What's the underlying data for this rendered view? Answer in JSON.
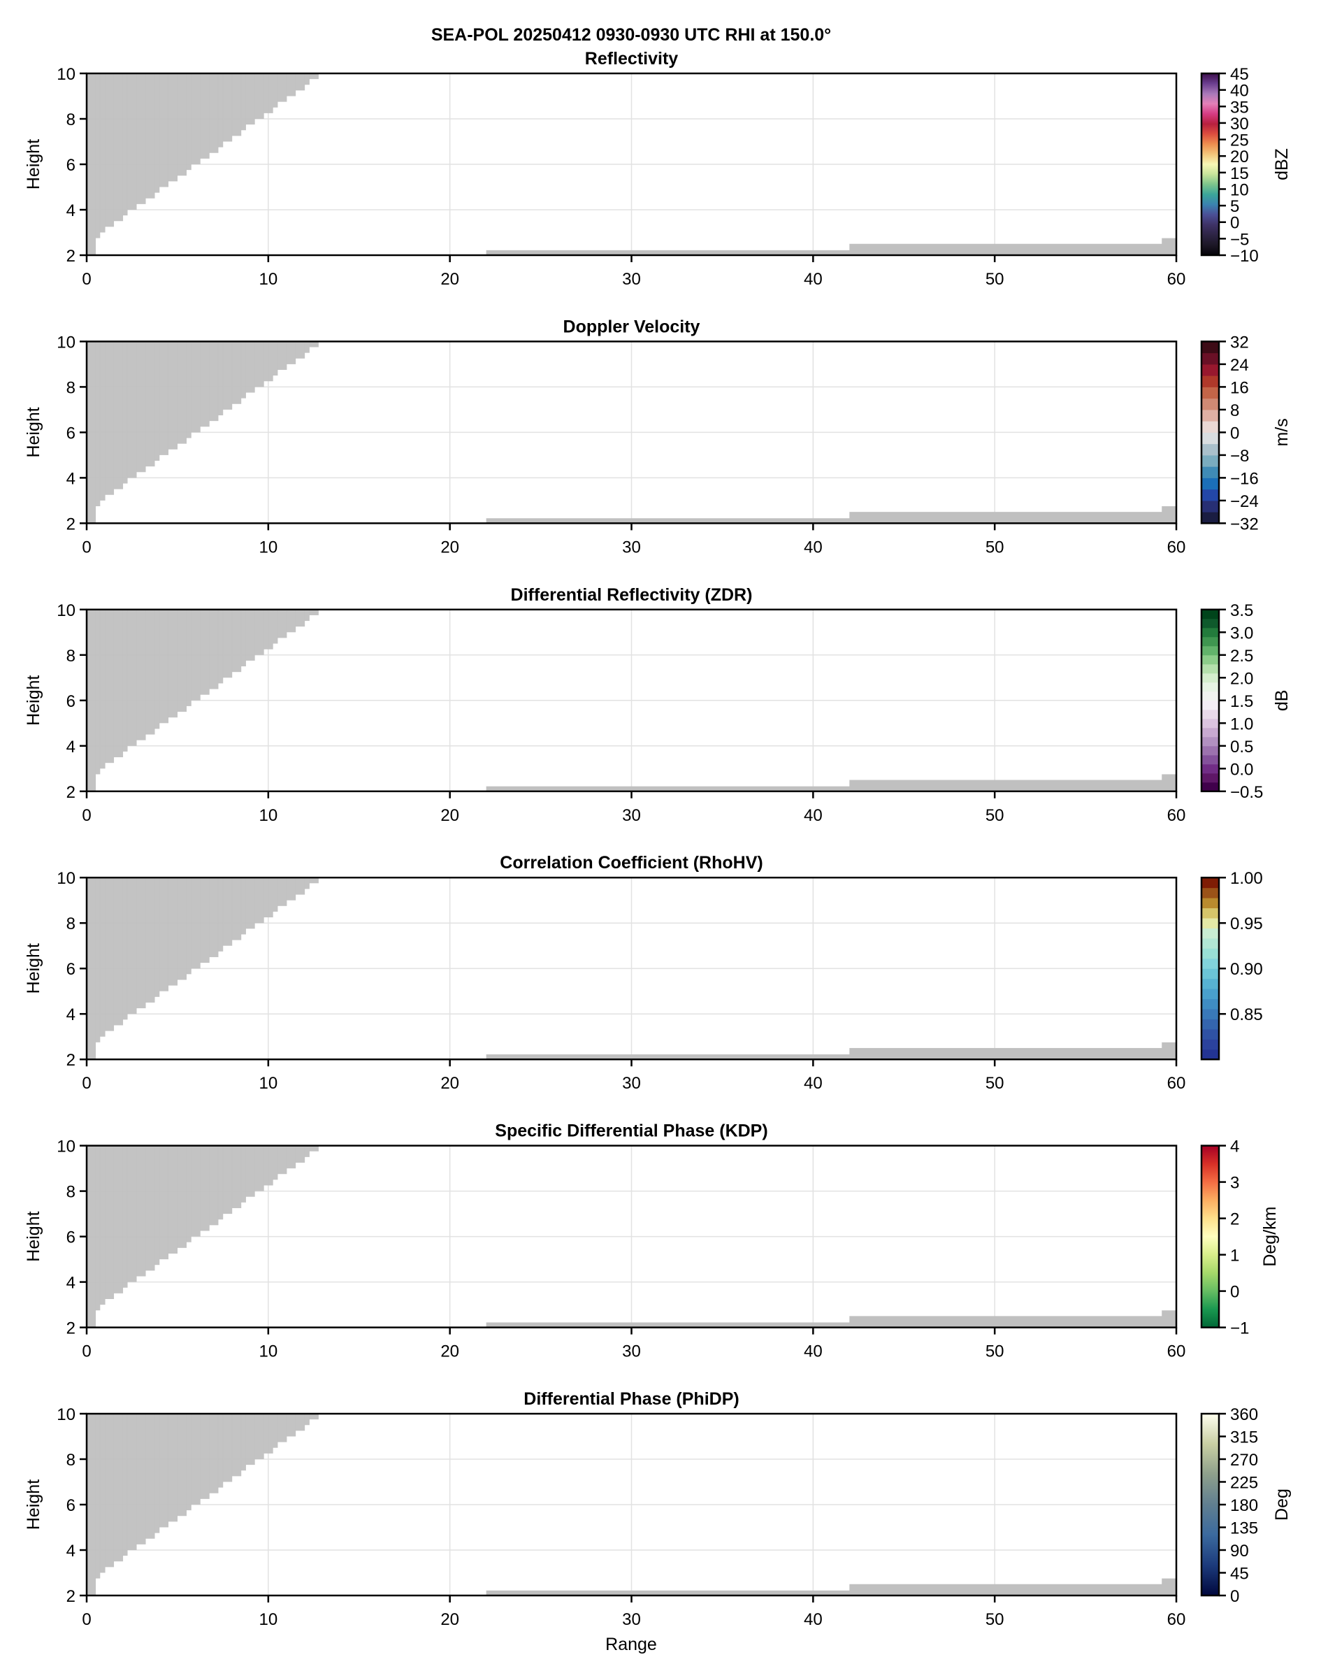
{
  "figure": {
    "suptitle": "SEA-POL 20250412 0930-0930 UTC RHI at 150.0°",
    "xlabel": "Range"
  },
  "chart_data": [
    {
      "type": "heatmap",
      "title": "Reflectivity",
      "xlabel": "",
      "ylabel": "Height",
      "xlim": [
        0,
        60
      ],
      "ylim": [
        2,
        10
      ],
      "xticks": [
        "0",
        "10",
        "20",
        "30",
        "40",
        "50",
        "60"
      ],
      "yticks": [
        "2",
        "4",
        "6",
        "8",
        "10"
      ],
      "grid": true,
      "colorbar": {
        "label": "dBZ",
        "range": [
          -10,
          45
        ],
        "ticks": [
          "−10",
          "−5",
          "0",
          "5",
          "10",
          "15",
          "20",
          "25",
          "30",
          "35",
          "40",
          "45"
        ],
        "tick_values": [
          -10,
          -5,
          0,
          5,
          10,
          15,
          20,
          25,
          30,
          35,
          40,
          45
        ],
        "colors": [
          "#050308",
          "#1c1726",
          "#2d2444",
          "#3e3266",
          "#4b4e96",
          "#3b82b0",
          "#3ba59a",
          "#7cc48c",
          "#c7e39a",
          "#f7f7b5",
          "#f3c67a",
          "#ee8e4f",
          "#dd4e3f",
          "#b8203f",
          "#d53c84",
          "#e480b7",
          "#a878b8",
          "#6b3e8f",
          "#3d0f4c"
        ]
      },
      "values": "no echo (all missing)"
    },
    {
      "type": "heatmap",
      "title": "Doppler Velocity",
      "xlabel": "",
      "ylabel": "Height",
      "xlim": [
        0,
        60
      ],
      "ylim": [
        2,
        10
      ],
      "xticks": [
        "0",
        "10",
        "20",
        "30",
        "40",
        "50",
        "60"
      ],
      "yticks": [
        "2",
        "4",
        "6",
        "8",
        "10"
      ],
      "grid": true,
      "colorbar": {
        "label": "m/s",
        "range": [
          -32,
          32
        ],
        "ticks": [
          "−32",
          "−24",
          "−16",
          "−8",
          "0",
          "8",
          "16",
          "24",
          "32"
        ],
        "tick_values": [
          -32,
          -24,
          -16,
          -8,
          0,
          8,
          16,
          24,
          32
        ],
        "colors": [
          "#1a1d42",
          "#272f74",
          "#2347a8",
          "#1b6fb8",
          "#3f8bb6",
          "#7aacbf",
          "#aac0cb",
          "#d9dde0",
          "#ead8d4",
          "#dfb0a4",
          "#d08a74",
          "#c46548",
          "#b0392a",
          "#98182e",
          "#6a1026",
          "#3d0b16"
        ],
        "discrete": true
      },
      "values": "no echo (all missing)"
    },
    {
      "type": "heatmap",
      "title": "Differential Reflectivity (ZDR)",
      "xlabel": "",
      "ylabel": "Height",
      "xlim": [
        0,
        60
      ],
      "ylim": [
        2,
        10
      ],
      "xticks": [
        "0",
        "10",
        "20",
        "30",
        "40",
        "50",
        "60"
      ],
      "yticks": [
        "2",
        "4",
        "6",
        "8",
        "10"
      ],
      "grid": true,
      "colorbar": {
        "label": "dB",
        "range": [
          -0.5,
          3.5
        ],
        "ticks": [
          "−0.5",
          "0.0",
          "0.5",
          "1.0",
          "1.5",
          "2.0",
          "2.5",
          "3.0",
          "3.5"
        ],
        "tick_values": [
          -0.5,
          0,
          0.5,
          1,
          1.5,
          2,
          2.5,
          3,
          3.5
        ],
        "colors": [
          "#40004b",
          "#5e1767",
          "#712d86",
          "#84519b",
          "#9c72ae",
          "#b290c0",
          "#c8a9d0",
          "#dcc4e0",
          "#e9d9ea",
          "#f3eef5",
          "#f1f3ef",
          "#e7f4e4",
          "#d4eecd",
          "#b4e0ac",
          "#8ccd8a",
          "#62b36b",
          "#3f9650",
          "#237b3c",
          "#0f5a2c",
          "#00441b"
        ],
        "discrete": true
      },
      "values": "no echo (all missing)"
    },
    {
      "type": "heatmap",
      "title": "Correlation Coefficient (RhoHV)",
      "xlabel": "",
      "ylabel": "Height",
      "xlim": [
        0,
        60
      ],
      "ylim": [
        2,
        10
      ],
      "xticks": [
        "0",
        "10",
        "20",
        "30",
        "40",
        "50",
        "60"
      ],
      "yticks": [
        "2",
        "4",
        "6",
        "8",
        "10"
      ],
      "grid": true,
      "colorbar": {
        "label": "",
        "range": [
          0.8,
          1.0
        ],
        "ticks": [
          "0.85",
          "0.90",
          "0.95",
          "1.00"
        ],
        "tick_values": [
          0.85,
          0.9,
          0.95,
          1.0
        ],
        "colors": [
          "#233494",
          "#2b429d",
          "#2f52a4",
          "#3465ae",
          "#3979b9",
          "#3f8dc3",
          "#49a0cc",
          "#57b2d2",
          "#6bc4d7",
          "#82d4dc",
          "#99e0d6",
          "#b1e6d4",
          "#c8ecd2",
          "#e3e8a6",
          "#d5c56a",
          "#b98b2e",
          "#9b5318",
          "#7f1d05"
        ],
        "discrete": true
      },
      "values": "no echo (all missing)"
    },
    {
      "type": "heatmap",
      "title": "Specific Differential Phase (KDP)",
      "xlabel": "",
      "ylabel": "Height",
      "xlim": [
        0,
        60
      ],
      "ylim": [
        2,
        10
      ],
      "xticks": [
        "0",
        "10",
        "20",
        "30",
        "40",
        "50",
        "60"
      ],
      "yticks": [
        "2",
        "4",
        "6",
        "8",
        "10"
      ],
      "grid": true,
      "colorbar": {
        "label": "Deg/km",
        "range": [
          -1,
          4
        ],
        "ticks": [
          "−1",
          "0",
          "1",
          "2",
          "3",
          "4"
        ],
        "tick_values": [
          -1,
          0,
          1,
          2,
          3,
          4
        ],
        "colors": [
          "#006837",
          "#1a9850",
          "#66bd63",
          "#a6d96a",
          "#d9ef8b",
          "#ffffbf",
          "#fee08b",
          "#fdae61",
          "#f46d43",
          "#d73027",
          "#a50026"
        ]
      },
      "values": "no echo (all missing)"
    },
    {
      "type": "heatmap",
      "title": "Differential Phase (PhiDP)",
      "xlabel": "Range",
      "ylabel": "Height",
      "xlim": [
        0,
        60
      ],
      "ylim": [
        2,
        10
      ],
      "xticks": [
        "0",
        "10",
        "20",
        "30",
        "40",
        "50",
        "60"
      ],
      "yticks": [
        "2",
        "4",
        "6",
        "8",
        "10"
      ],
      "grid": true,
      "colorbar": {
        "label": "Deg",
        "range": [
          0,
          360
        ],
        "ticks": [
          "0",
          "45",
          "90",
          "135",
          "180",
          "225",
          "270",
          "315",
          "360"
        ],
        "tick_values": [
          0,
          45,
          90,
          135,
          180,
          225,
          270,
          315,
          360
        ],
        "colors": [
          "#00073d",
          "#1c3b7c",
          "#3b6a9e",
          "#607f90",
          "#8ea08c",
          "#c9cfa3",
          "#fffff0"
        ]
      },
      "values": "no echo (all missing)"
    }
  ],
  "masked_regions": {
    "color": "#c0c0c0",
    "blockage_steps": [
      [
        0,
        2
      ],
      [
        0.48,
        2.75
      ],
      [
        0.72,
        3.0
      ],
      [
        1.0,
        3.25
      ],
      [
        1.48,
        3.5
      ],
      [
        1.98,
        3.75
      ],
      [
        2.23,
        4.0
      ],
      [
        2.73,
        4.25
      ],
      [
        3.23,
        4.5
      ],
      [
        3.73,
        4.75
      ],
      [
        3.99,
        5.0
      ],
      [
        4.48,
        5.25
      ],
      [
        4.98,
        5.5
      ],
      [
        5.48,
        5.75
      ],
      [
        5.74,
        6.0
      ],
      [
        6.24,
        6.25
      ],
      [
        6.74,
        6.5
      ],
      [
        7.23,
        6.75
      ],
      [
        7.49,
        7.0
      ],
      [
        7.99,
        7.25
      ],
      [
        8.49,
        7.5
      ],
      [
        8.75,
        7.75
      ],
      [
        9.24,
        8.0
      ],
      [
        9.74,
        8.25
      ],
      [
        10.24,
        8.5
      ],
      [
        10.5,
        8.75
      ],
      [
        11.0,
        9.0
      ],
      [
        11.49,
        9.25
      ],
      [
        11.99,
        9.5
      ],
      [
        12.25,
        9.75
      ]
    ],
    "blockage_end": 12.75,
    "ground_segments": [
      [
        22,
        42,
        2.22
      ],
      [
        42,
        59.2,
        2.5
      ],
      [
        59.2,
        60,
        2.75
      ]
    ]
  },
  "colors": {
    "grid": "#e2e2e2",
    "axis": "#000000",
    "mask": "#c0c0c0"
  }
}
